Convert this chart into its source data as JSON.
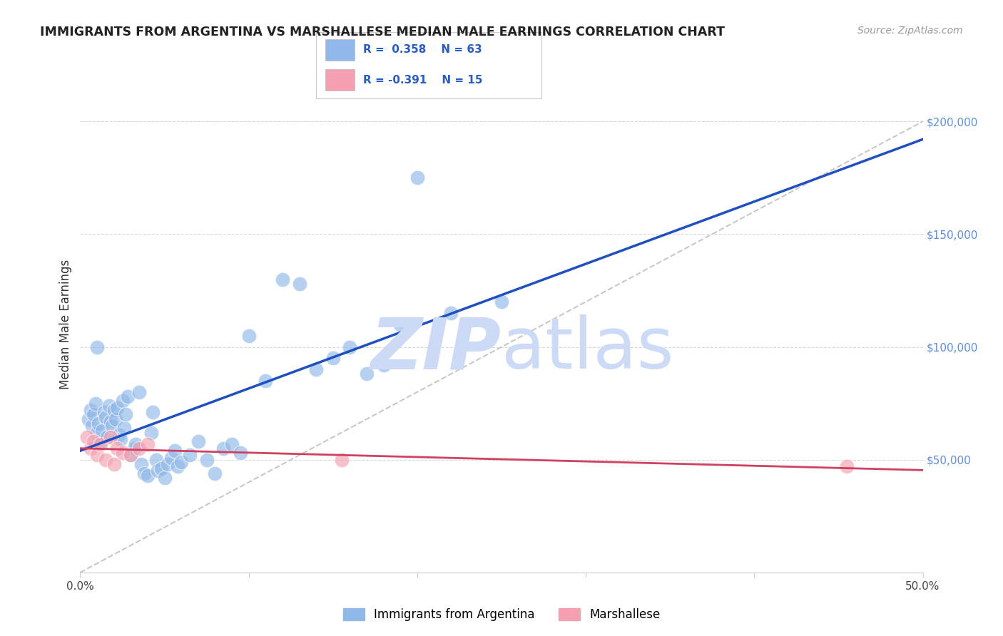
{
  "title": "IMMIGRANTS FROM ARGENTINA VS MARSHALLESE MEDIAN MALE EARNINGS CORRELATION CHART",
  "source": "Source: ZipAtlas.com",
  "ylabel": "Median Male Earnings",
  "legend_label1": "Immigrants from Argentina",
  "legend_label2": "Marshallese",
  "R1": 0.358,
  "N1": 63,
  "R2": -0.391,
  "N2": 15,
  "xlim": [
    0.0,
    0.5
  ],
  "ylim": [
    0,
    220000
  ],
  "color1": "#90b8e8",
  "color2": "#f4a0b0",
  "line_color1": "#2050c0",
  "line_color2": "#d04060",
  "ref_line_color": "#c8c8c8",
  "watermark_color": "#ccdaf5",
  "grid_color": "#d8d8d8",
  "right_tick_color": "#5b8fde",
  "argentina_x": [
    0.005,
    0.006,
    0.007,
    0.008,
    0.009,
    0.01,
    0.011,
    0.012,
    0.013,
    0.014,
    0.015,
    0.016,
    0.017,
    0.018,
    0.019,
    0.02,
    0.021,
    0.022,
    0.023,
    0.024,
    0.025,
    0.026,
    0.027,
    0.028,
    0.03,
    0.032,
    0.033,
    0.035,
    0.036,
    0.038,
    0.04,
    0.042,
    0.043,
    0.045,
    0.046,
    0.048,
    0.05,
    0.052,
    0.054,
    0.056,
    0.058,
    0.06,
    0.065,
    0.07,
    0.075,
    0.08,
    0.085,
    0.09,
    0.095,
    0.01,
    0.1,
    0.11,
    0.12,
    0.13,
    0.14,
    0.15,
    0.16,
    0.17,
    0.18,
    0.19,
    0.2,
    0.22,
    0.25
  ],
  "argentina_y": [
    68000,
    72000,
    65000,
    70000,
    75000,
    62000,
    66000,
    58000,
    63000,
    71000,
    69000,
    60000,
    74000,
    67000,
    65000,
    72000,
    68000,
    73000,
    61000,
    59000,
    76000,
    64000,
    70000,
    78000,
    52000,
    55000,
    57000,
    80000,
    48000,
    44000,
    43000,
    62000,
    71000,
    50000,
    45000,
    46000,
    42000,
    48000,
    51000,
    54000,
    47000,
    49000,
    52000,
    58000,
    50000,
    44000,
    55000,
    57000,
    53000,
    100000,
    105000,
    85000,
    130000,
    128000,
    90000,
    95000,
    100000,
    88000,
    92000,
    110000,
    175000,
    115000,
    120000
  ],
  "marshallese_x": [
    0.004,
    0.006,
    0.008,
    0.01,
    0.012,
    0.015,
    0.018,
    0.02,
    0.022,
    0.025,
    0.03,
    0.035,
    0.04,
    0.155,
    0.455
  ],
  "marshallese_y": [
    60000,
    55000,
    58000,
    52000,
    57000,
    50000,
    60000,
    48000,
    55000,
    53000,
    52000,
    55000,
    57000,
    50000,
    47000
  ]
}
